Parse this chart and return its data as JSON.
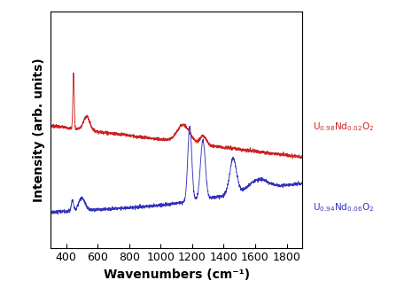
{
  "xmin": 300,
  "xmax": 1900,
  "xlabel": "Wavenumbers (cm⁻¹)",
  "ylabel": "Intensity (arb. units)",
  "red_color": "#cc2222",
  "blue_color": "#3333bb",
  "background": "#ffffff",
  "tick_fontsize": 9,
  "label_fontsize": 10,
  "xticks": [
    400,
    600,
    800,
    1000,
    1200,
    1400,
    1600,
    1800
  ],
  "red_baseline": 0.62,
  "red_slope": -0.0001,
  "blue_baseline": 0.18,
  "blue_slope": 4e-05
}
